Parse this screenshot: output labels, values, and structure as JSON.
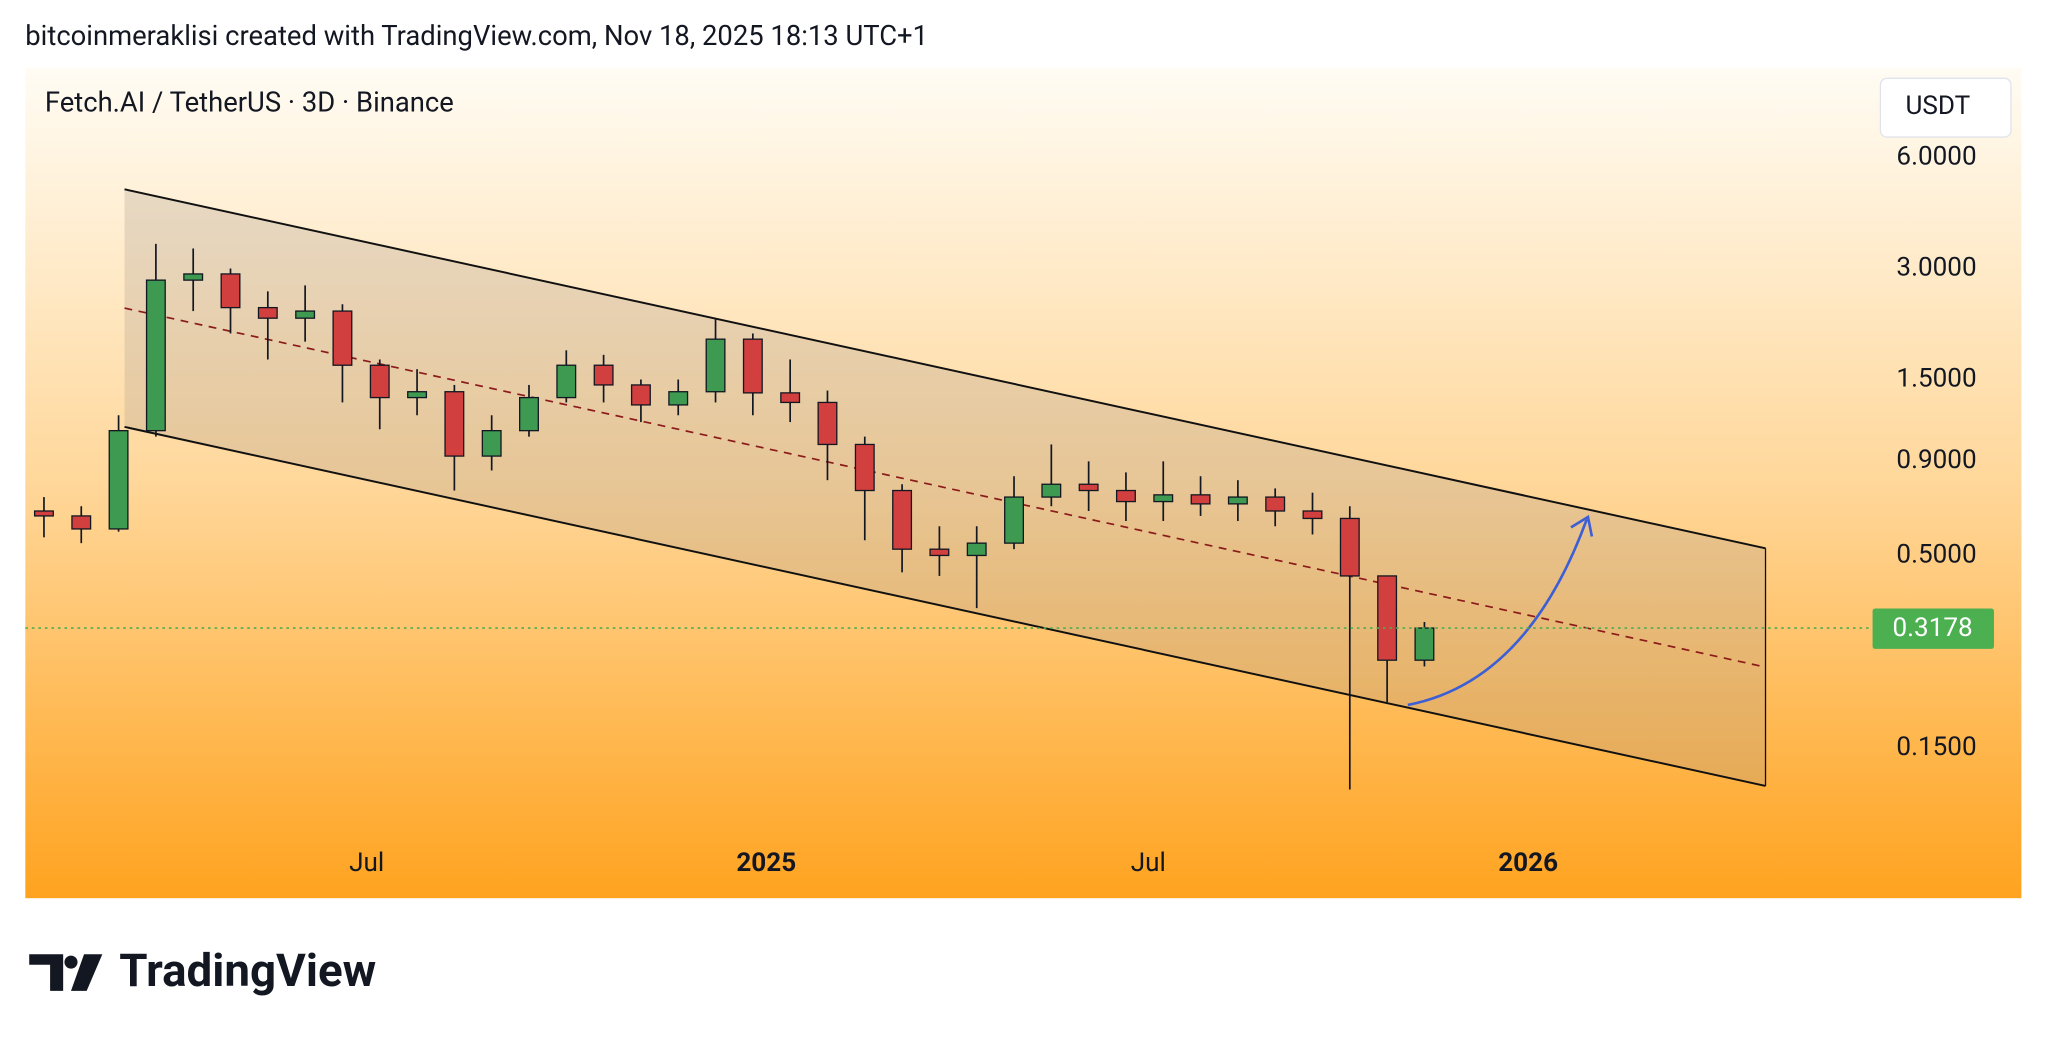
{
  "header": {
    "attribution": "bitcoinmeraklisi created with TradingView.com, Nov 18, 2025 18:13 UTC+1"
  },
  "chart_data": {
    "type": "candlestick",
    "title": "Fetch.AI / TetherUS · 3D · Binance",
    "currency": "USDT",
    "log_scale": true,
    "ylim": [
      0.087,
      10.5
    ],
    "yticks": [
      {
        "value": 6,
        "label": "6.0000"
      },
      {
        "value": 3,
        "label": "3.0000"
      },
      {
        "value": 1.5,
        "label": "1.5000"
      },
      {
        "value": 0.9,
        "label": "0.9000"
      },
      {
        "value": 0.5,
        "label": "0.5000"
      },
      {
        "value": 0.15,
        "label": "0.1500"
      }
    ],
    "xlim": [
      -0.5,
      53
    ],
    "xticks": [
      {
        "value": 8.65,
        "label": "Jul"
      },
      {
        "value": 19.36,
        "label": "2025"
      },
      {
        "value": 29.6,
        "label": "Jul"
      },
      {
        "value": 39.78,
        "label": "2026"
      }
    ],
    "last_price": {
      "value": 0.3178,
      "label": "0.3178"
    },
    "up_color": "#3d9a50",
    "down_color": "#d23f3f",
    "last_price_color": "#4caf50",
    "open": [
      0.66,
      0.64,
      0.59,
      1.09,
      2.79,
      2.9,
      2.35,
      2.2,
      2.3,
      1.64,
      1.34,
      1.39,
      0.93,
      1.09,
      1.34,
      1.64,
      1.45,
      1.28,
      1.39,
      1.93,
      1.38,
      1.3,
      1.0,
      0.75,
      0.52,
      0.5,
      0.54,
      0.72,
      0.78,
      0.75,
      0.7,
      0.73,
      0.69,
      0.72,
      0.66,
      0.63,
      0.44,
      0.26
    ],
    "high": [
      0.72,
      0.68,
      1.2,
      3.5,
      3.4,
      3.0,
      2.6,
      2.7,
      2.4,
      1.7,
      1.6,
      1.45,
      1.2,
      1.45,
      1.8,
      1.75,
      1.5,
      1.5,
      2.2,
      2.0,
      1.7,
      1.4,
      1.05,
      0.78,
      0.6,
      0.6,
      0.82,
      1.0,
      0.9,
      0.84,
      0.9,
      0.82,
      0.8,
      0.76,
      0.74,
      0.68,
      0.44,
      0.33
    ],
    "low": [
      0.56,
      0.54,
      0.58,
      1.05,
      2.3,
      2.0,
      1.7,
      1.9,
      1.3,
      1.1,
      1.2,
      0.75,
      0.85,
      1.05,
      1.3,
      1.3,
      1.15,
      1.2,
      1.3,
      1.2,
      1.15,
      0.8,
      0.55,
      0.45,
      0.44,
      0.36,
      0.52,
      0.68,
      0.66,
      0.62,
      0.62,
      0.64,
      0.62,
      0.6,
      0.57,
      0.116,
      0.2,
      0.25
    ],
    "close": [
      0.64,
      0.59,
      1.09,
      2.79,
      2.9,
      2.35,
      2.2,
      2.3,
      1.64,
      1.34,
      1.39,
      0.93,
      1.09,
      1.34,
      1.64,
      1.45,
      1.28,
      1.39,
      1.93,
      1.38,
      1.3,
      1.0,
      0.75,
      0.52,
      0.5,
      0.54,
      0.72,
      0.78,
      0.75,
      0.7,
      0.73,
      0.69,
      0.72,
      0.66,
      0.63,
      0.44,
      0.26,
      0.3178
    ]
  },
  "footer": {
    "brand": "TradingView"
  }
}
